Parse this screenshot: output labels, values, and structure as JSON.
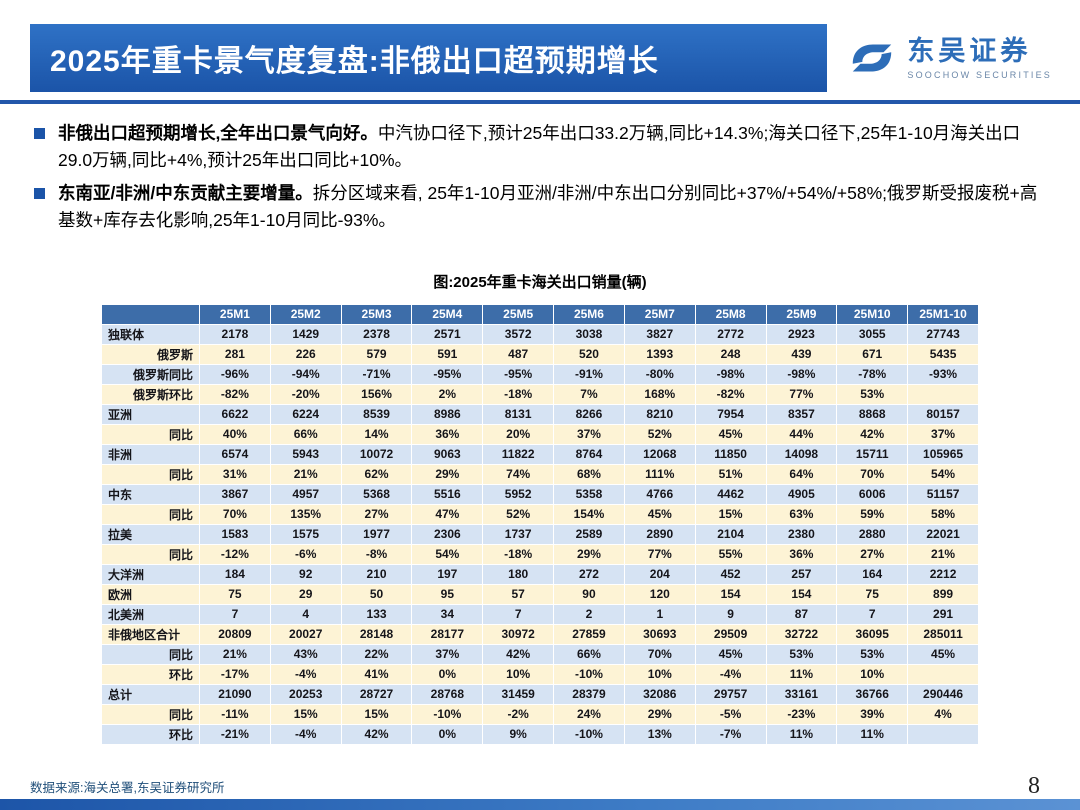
{
  "header": {
    "title": "2025年重卡景气度复盘:非俄出口超预期增长",
    "logo_cn": "东吴证券",
    "logo_en": "SOOCHOW SECURITIES"
  },
  "colors": {
    "header_blue": "#1b54a8",
    "table_header_blue": "#3d6da9",
    "row_blue": "#d6e3f3",
    "row_cream": "#fdf3d5"
  },
  "bullets": [
    {
      "bold": "非俄出口超预期增长,全年出口景气向好。",
      "rest": "中汽协口径下,预计25年出口33.2万辆,同比+14.3%;海关口径下,25年1-10月海关出口29.0万辆,同比+4%,预计25年出口同比+10%。"
    },
    {
      "bold": "东南亚/非洲/中东贡献主要增量。",
      "rest": "拆分区域来看, 25年1-10月亚洲/非洲/中东出口分别同比+37%/+54%/+58%;俄罗斯受报废税+高基数+库存去化影响,25年1-10月同比-93%。"
    }
  ],
  "table": {
    "caption": "图:2025年重卡海关出口销量(辆)",
    "columns": [
      "",
      "25M1",
      "25M2",
      "25M3",
      "25M4",
      "25M5",
      "25M6",
      "25M7",
      "25M8",
      "25M9",
      "25M10",
      "25M1-10"
    ],
    "rows": [
      {
        "label": "独联体",
        "indent": false,
        "values": [
          "2178",
          "1429",
          "2378",
          "2571",
          "3572",
          "3038",
          "3827",
          "2772",
          "2923",
          "3055",
          "27743"
        ]
      },
      {
        "label": "俄罗斯",
        "indent": true,
        "values": [
          "281",
          "226",
          "579",
          "591",
          "487",
          "520",
          "1393",
          "248",
          "439",
          "671",
          "5435"
        ]
      },
      {
        "label": "俄罗斯同比",
        "indent": true,
        "values": [
          "-96%",
          "-94%",
          "-71%",
          "-95%",
          "-95%",
          "-91%",
          "-80%",
          "-98%",
          "-98%",
          "-78%",
          "-93%"
        ]
      },
      {
        "label": "俄罗斯环比",
        "indent": true,
        "values": [
          "-82%",
          "-20%",
          "156%",
          "2%",
          "-18%",
          "7%",
          "168%",
          "-82%",
          "77%",
          "53%",
          ""
        ]
      },
      {
        "label": "亚洲",
        "indent": false,
        "values": [
          "6622",
          "6224",
          "8539",
          "8986",
          "8131",
          "8266",
          "8210",
          "7954",
          "8357",
          "8868",
          "80157"
        ]
      },
      {
        "label": "同比",
        "indent": true,
        "values": [
          "40%",
          "66%",
          "14%",
          "36%",
          "20%",
          "37%",
          "52%",
          "45%",
          "44%",
          "42%",
          "37%"
        ]
      },
      {
        "label": "非洲",
        "indent": false,
        "values": [
          "6574",
          "5943",
          "10072",
          "9063",
          "11822",
          "8764",
          "12068",
          "11850",
          "14098",
          "15711",
          "105965"
        ]
      },
      {
        "label": "同比",
        "indent": true,
        "values": [
          "31%",
          "21%",
          "62%",
          "29%",
          "74%",
          "68%",
          "111%",
          "51%",
          "64%",
          "70%",
          "54%"
        ]
      },
      {
        "label": "中东",
        "indent": false,
        "values": [
          "3867",
          "4957",
          "5368",
          "5516",
          "5952",
          "5358",
          "4766",
          "4462",
          "4905",
          "6006",
          "51157"
        ]
      },
      {
        "label": "同比",
        "indent": true,
        "values": [
          "70%",
          "135%",
          "27%",
          "47%",
          "52%",
          "154%",
          "45%",
          "15%",
          "63%",
          "59%",
          "58%"
        ]
      },
      {
        "label": "拉美",
        "indent": false,
        "values": [
          "1583",
          "1575",
          "1977",
          "2306",
          "1737",
          "2589",
          "2890",
          "2104",
          "2380",
          "2880",
          "22021"
        ]
      },
      {
        "label": "同比",
        "indent": true,
        "values": [
          "-12%",
          "-6%",
          "-8%",
          "54%",
          "-18%",
          "29%",
          "77%",
          "55%",
          "36%",
          "27%",
          "21%"
        ]
      },
      {
        "label": "大洋洲",
        "indent": false,
        "values": [
          "184",
          "92",
          "210",
          "197",
          "180",
          "272",
          "204",
          "452",
          "257",
          "164",
          "2212"
        ]
      },
      {
        "label": "欧洲",
        "indent": false,
        "values": [
          "75",
          "29",
          "50",
          "95",
          "57",
          "90",
          "120",
          "154",
          "154",
          "75",
          "899"
        ]
      },
      {
        "label": "北美洲",
        "indent": false,
        "values": [
          "7",
          "4",
          "133",
          "34",
          "7",
          "2",
          "1",
          "9",
          "87",
          "7",
          "291"
        ]
      },
      {
        "label": "非俄地区合计",
        "indent": false,
        "values": [
          "20809",
          "20027",
          "28148",
          "28177",
          "30972",
          "27859",
          "30693",
          "29509",
          "32722",
          "36095",
          "285011"
        ]
      },
      {
        "label": "同比",
        "indent": true,
        "values": [
          "21%",
          "43%",
          "22%",
          "37%",
          "42%",
          "66%",
          "70%",
          "45%",
          "53%",
          "53%",
          "45%"
        ]
      },
      {
        "label": "环比",
        "indent": true,
        "values": [
          "-17%",
          "-4%",
          "41%",
          "0%",
          "10%",
          "-10%",
          "10%",
          "-4%",
          "11%",
          "10%",
          ""
        ]
      },
      {
        "label": "总计",
        "indent": false,
        "values": [
          "21090",
          "20253",
          "28727",
          "28768",
          "31459",
          "28379",
          "32086",
          "29757",
          "33161",
          "36766",
          "290446"
        ]
      },
      {
        "label": "同比",
        "indent": true,
        "values": [
          "-11%",
          "15%",
          "15%",
          "-10%",
          "-2%",
          "24%",
          "29%",
          "-5%",
          "-23%",
          "39%",
          "4%"
        ]
      },
      {
        "label": "环比",
        "indent": true,
        "values": [
          "-21%",
          "-4%",
          "42%",
          "0%",
          "9%",
          "-10%",
          "13%",
          "-7%",
          "11%",
          "11%",
          ""
        ]
      }
    ]
  },
  "footer": {
    "source": "数据来源:海关总署,东吴证券研究所",
    "page": "8"
  }
}
